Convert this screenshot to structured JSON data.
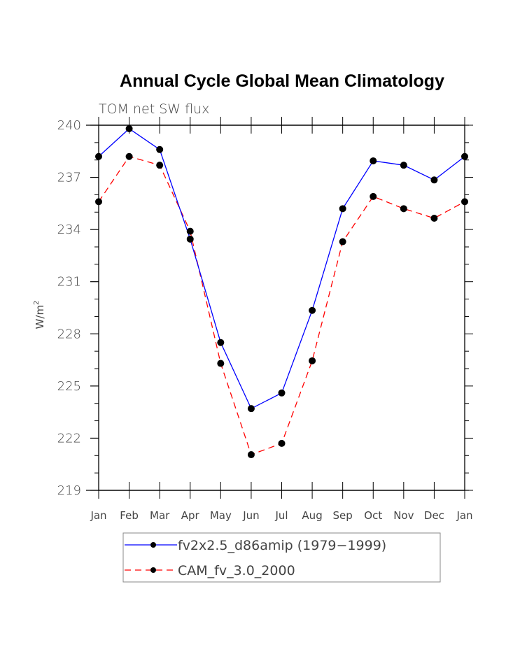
{
  "chart_data": {
    "type": "line",
    "title": "Annual Cycle Global Mean Climatology",
    "subtitle": "TOM net SW flux",
    "xlabel": "",
    "ylabel": "W/m",
    "ylabel_superscript": "2",
    "categories": [
      "Jan",
      "Feb",
      "Mar",
      "Apr",
      "May",
      "Jun",
      "Jul",
      "Aug",
      "Sep",
      "Oct",
      "Nov",
      "Dec",
      "Jan"
    ],
    "ylim": [
      219,
      240
    ],
    "yticks": [
      219,
      222,
      225,
      228,
      231,
      234,
      237,
      240
    ],
    "yminor_step": 1,
    "grid": false,
    "legend_position": "bottom",
    "series": [
      {
        "name": "fv2x2.5_d86amip (1979−1999)",
        "color": "#0000ff",
        "dash": "solid",
        "marker": "circle",
        "values": [
          238.2,
          239.8,
          238.6,
          233.45,
          227.5,
          223.7,
          224.6,
          229.35,
          235.2,
          237.95,
          237.7,
          236.85,
          238.2
        ]
      },
      {
        "name": "CAM_fv_3.0_2000",
        "color": "#ff0000",
        "dash": "dashed",
        "marker": "circle",
        "values": [
          235.6,
          238.2,
          237.7,
          233.9,
          226.3,
          221.05,
          221.7,
          226.45,
          233.3,
          235.9,
          235.2,
          234.65,
          235.6
        ]
      }
    ]
  }
}
